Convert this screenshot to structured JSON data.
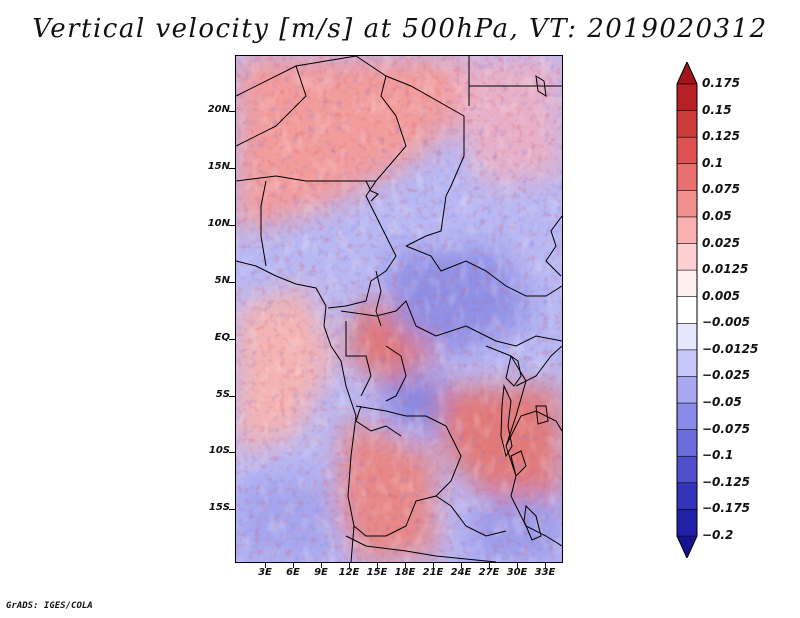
{
  "title": "Vertical velocity [m/s] at 500hPa, VT: 2019020312",
  "credit": "GrADS: IGES/COLA",
  "lat_labels": [
    "20N",
    "15N",
    "10N",
    "5N",
    "EQ",
    "5S",
    "10S",
    "15S"
  ],
  "lon_labels": [
    "3E",
    "6E",
    "9E",
    "12E",
    "15E",
    "18E",
    "21E",
    "24E",
    "27E",
    "30E",
    "33E"
  ],
  "colorbar": {
    "labels": [
      "0.175",
      "0.15",
      "0.125",
      "0.1",
      "0.075",
      "0.05",
      "0.025",
      "0.0125",
      "0.005",
      "−0.005",
      "−0.0125",
      "−0.025",
      "−0.05",
      "−0.075",
      "−0.1",
      "−0.125",
      "−0.175",
      "−0.2"
    ],
    "colors": [
      "#a4151b",
      "#b82028",
      "#cc3a3a",
      "#dc5252",
      "#e87070",
      "#f29090",
      "#f8b0b0",
      "#fcd0d0",
      "#fff0f0",
      "#ffffff",
      "#e6e6ff",
      "#c6c6fa",
      "#a8a8f2",
      "#8a8aea",
      "#6c6cdc",
      "#5050cc",
      "#3434bb",
      "#2020a8",
      "#14148e"
    ]
  },
  "chart_data": {
    "type": "heatmap",
    "title": "Vertical velocity [m/s] at 500hPa, VT: 2019020312",
    "variable": "Vertical velocity",
    "units": "m/s",
    "level": "500hPa",
    "valid_time": "2019020312",
    "lon_range": [
      0,
      35
    ],
    "lat_range": [
      -20,
      24
    ],
    "levels": [
      -0.2,
      -0.175,
      -0.125,
      -0.1,
      -0.075,
      -0.05,
      -0.025,
      -0.0125,
      -0.005,
      0.005,
      0.0125,
      0.025,
      0.05,
      0.075,
      0.1,
      0.125,
      0.15,
      0.175
    ]
  }
}
